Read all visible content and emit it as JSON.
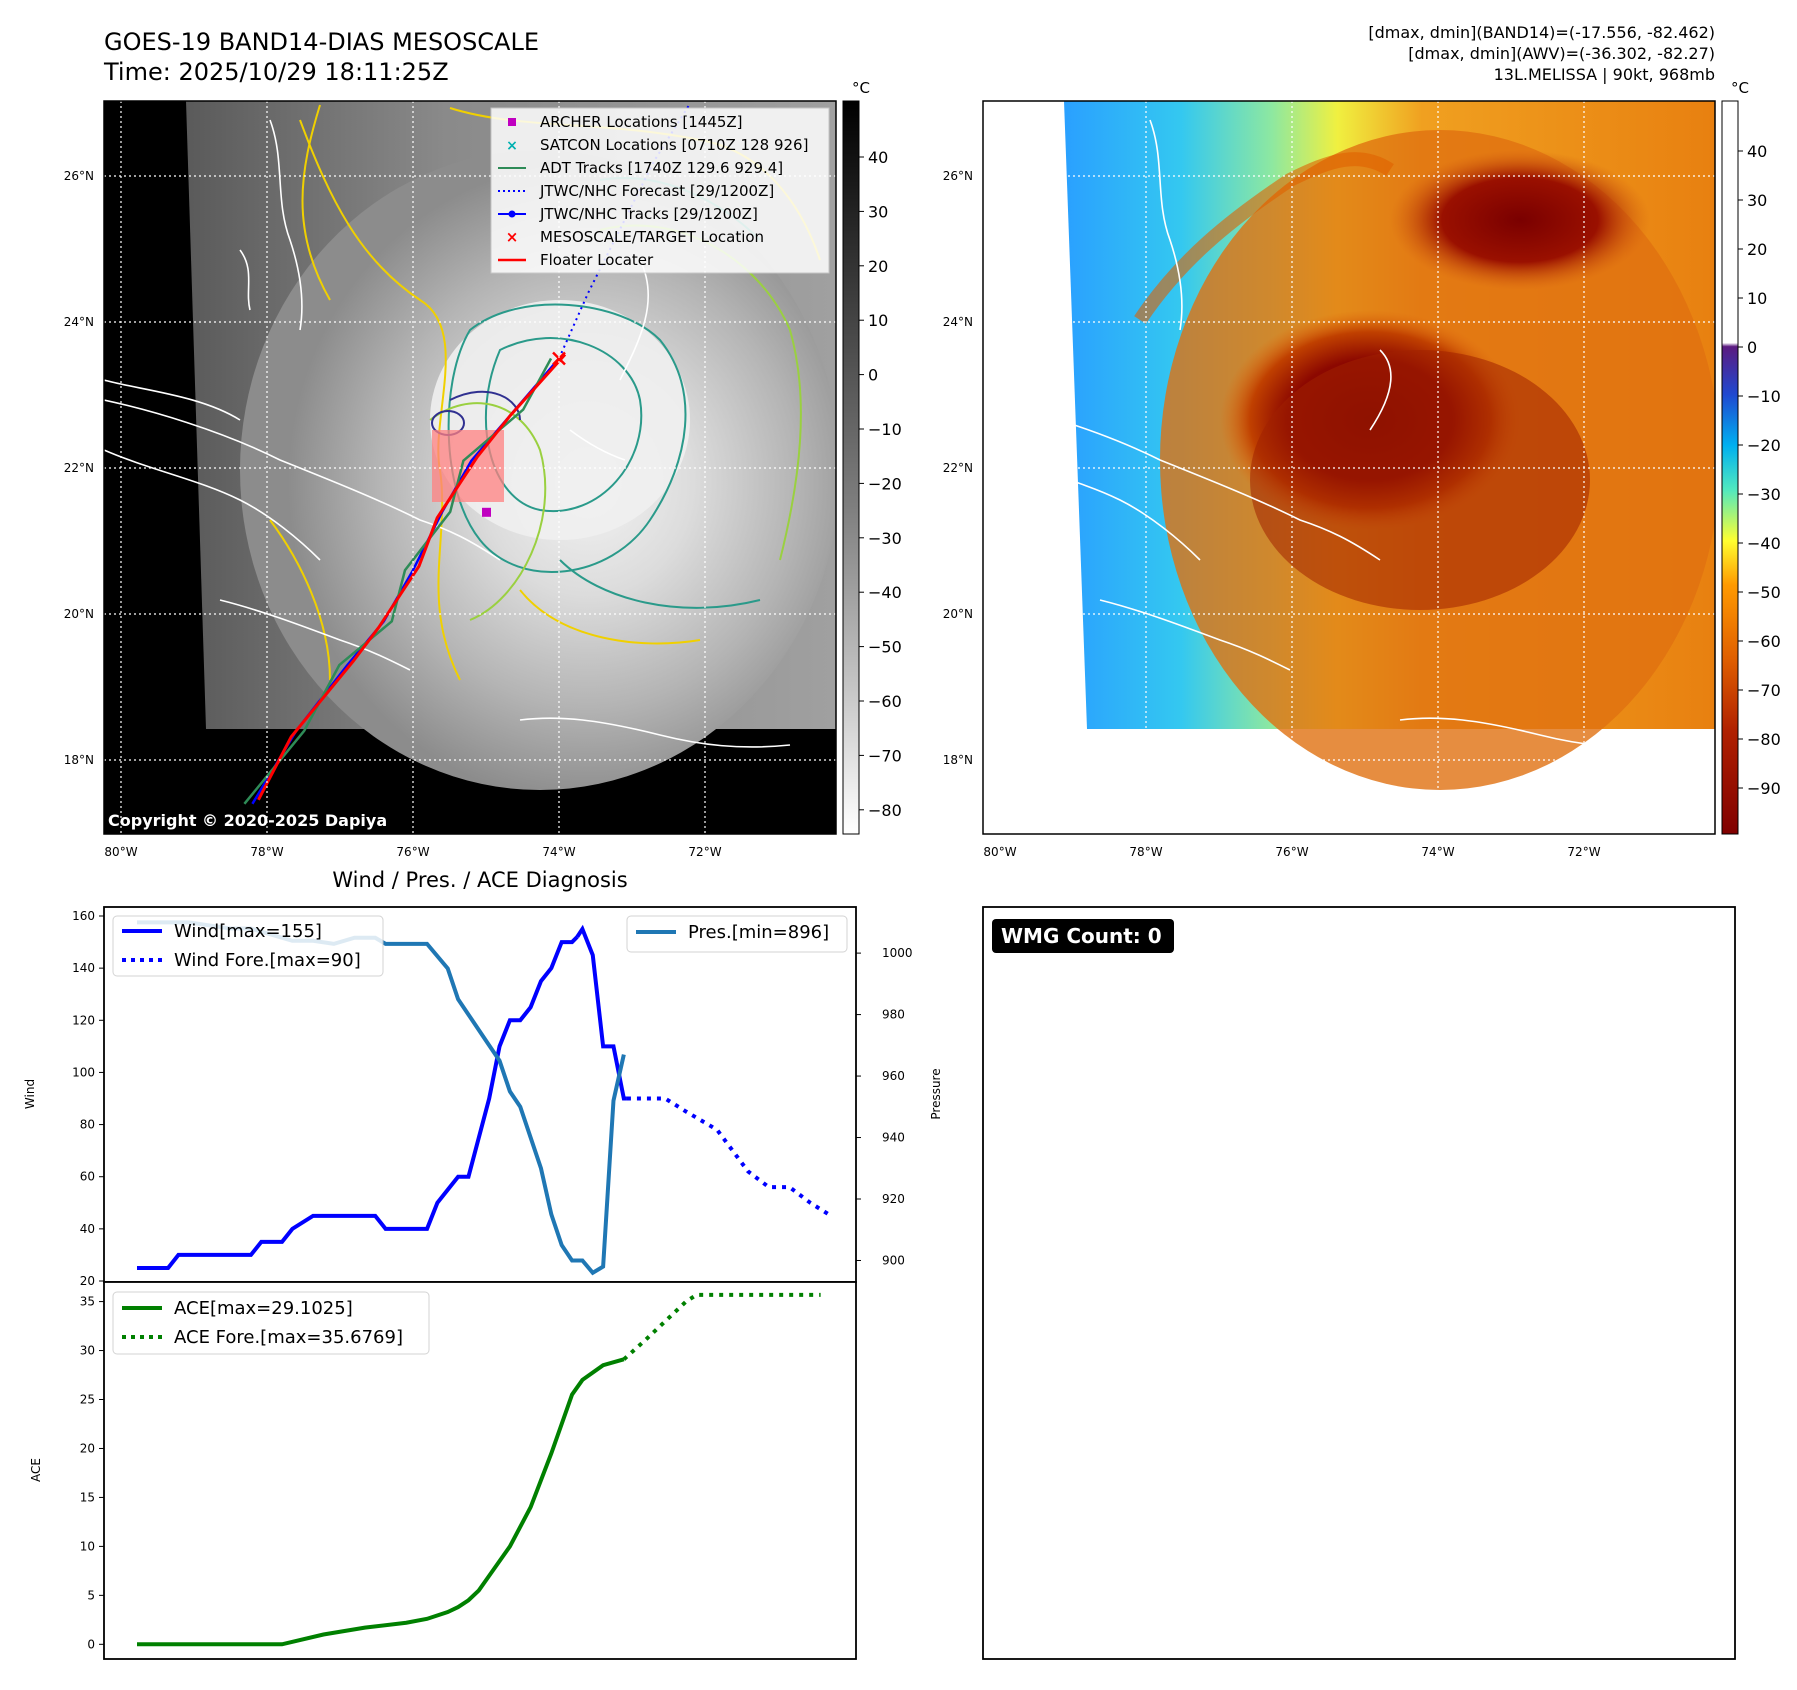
{
  "header": {
    "title": "GOES-19 BAND14-DIAS MESOSCALE",
    "time": "Time: 2025/10/29 18:11:25Z",
    "stat1": "[dmax, dmin](BAND14)=(-17.556, -82.462)",
    "stat2": "[dmax, dmin](AWV)=(-36.302, -82.27)",
    "storm": "13L.MELISSA | 90kt, 968mb",
    "copyright": "Copyright © 2020-2025 Dapiya"
  },
  "colors": {
    "wind": "#0000ff",
    "pres": "#1f77b4",
    "ace": "#008000",
    "archer": "#c000c0",
    "satcon": "#00b0b0",
    "adt": "#2e8b57",
    "target": "#ff0000",
    "floater": "#ff0000"
  },
  "chart_data": [
    {
      "type": "map",
      "panel": "BAND14 grayscale with contours",
      "unit": "°C",
      "colorbar_ticks": [
        "40",
        "30",
        "20",
        "10",
        "0",
        "−10",
        "−20",
        "−30",
        "−40",
        "−50",
        "−60",
        "−70",
        "−80"
      ],
      "lon_ticks": [
        "80°W",
        "78°W",
        "76°W",
        "74°W",
        "72°W"
      ],
      "lat_ticks": [
        "26°N",
        "24°N",
        "22°N",
        "20°N",
        "18°N"
      ],
      "legend": [
        {
          "label": "ARCHER Locations [1445Z]",
          "icon": "magenta-square-icon"
        },
        {
          "label": "SATCON Locations [0710Z 128 926]",
          "icon": "cyan-x-icon"
        },
        {
          "label": "ADT Tracks [1740Z 129.6 929.4]",
          "icon": "green-line-icon"
        },
        {
          "label": "JTWC/NHC Forecast [29/1200Z]",
          "icon": "blue-dotted-line-icon"
        },
        {
          "label": "JTWC/NHC Tracks [29/1200Z]",
          "icon": "blue-line-dot-icon"
        },
        {
          "label": "MESOSCALE/TARGET Location",
          "icon": "red-x-icon"
        },
        {
          "label": "Floater Locater",
          "icon": "red-line-icon"
        }
      ],
      "target_location": {
        "lon": -74.0,
        "lat": 23.5
      },
      "archer_location": {
        "lon": -75.0,
        "lat": 21.4
      },
      "track": [
        [
          -78.2,
          17.4
        ],
        [
          -77.6,
          18.4
        ],
        [
          -76.9,
          19.3
        ],
        [
          -76.4,
          19.9
        ],
        [
          -76.0,
          20.6
        ],
        [
          -75.6,
          21.4
        ],
        [
          -75.2,
          22.1
        ],
        [
          -74.6,
          22.8
        ],
        [
          -74.0,
          23.5
        ]
      ],
      "forecast": [
        [
          -74.0,
          23.5
        ],
        [
          -73.6,
          24.4
        ],
        [
          -73.2,
          25.2
        ],
        [
          -72.7,
          26.2
        ],
        [
          -72.2,
          27.0
        ]
      ]
    },
    {
      "type": "map",
      "panel": "AWV enhanced colour",
      "unit": "°C",
      "colorbar_ticks": [
        "40",
        "30",
        "20",
        "10",
        "0",
        "−10",
        "−20",
        "−30",
        "−40",
        "−50",
        "−60",
        "−70",
        "−80",
        "−90"
      ],
      "lon_ticks": [
        "80°W",
        "78°W",
        "76°W",
        "74°W",
        "72°W"
      ],
      "lat_ticks": [
        "26°N",
        "24°N",
        "22°N",
        "20°N",
        "18°N"
      ]
    },
    {
      "type": "line",
      "title": "Wind / Pres. / ACE Diagnosis",
      "ylabel": "Wind",
      "ylabel_right": "Pressure",
      "ylim": [
        20,
        160
      ],
      "ylim_right": [
        893,
        1015
      ],
      "yticks": [
        "160",
        "140",
        "120",
        "100",
        "80",
        "60",
        "40",
        "20"
      ],
      "yticks_right": [
        "1000",
        "980",
        "960",
        "940",
        "920",
        "900"
      ],
      "xlim": [
        0,
        67
      ],
      "series": [
        {
          "name": "Wind[max=155]",
          "axis": "left",
          "style": "solid",
          "x": [
            0,
            3,
            4,
            11,
            12,
            14,
            15,
            17,
            19,
            20,
            23,
            24,
            25,
            26,
            27,
            28,
            29,
            30,
            31,
            32,
            33,
            34,
            35,
            36,
            37,
            38,
            39,
            40,
            41,
            42,
            42.5
          ],
          "y": [
            25,
            25,
            30,
            30,
            35,
            35,
            40,
            45,
            45,
            45,
            45,
            40,
            40,
            40,
            40,
            40,
            50,
            55,
            60,
            60,
            75,
            90,
            110,
            120,
            120,
            125,
            135,
            140,
            150,
            150,
            152
          ]
        },
        {
          "name": "",
          "axis": "left",
          "style": "solid",
          "x": [
            42.5,
            43,
            44,
            45,
            45.5,
            46,
            47,
            47.3
          ],
          "y": [
            152,
            155,
            145,
            110,
            110,
            110,
            90,
            90
          ]
        },
        {
          "name": "Wind Fore.[max=90]",
          "axis": "left",
          "style": "dotted",
          "x": [
            47.3,
            49,
            51,
            53,
            56,
            59,
            61,
            63,
            65,
            67
          ],
          "y": [
            90,
            90,
            90,
            85,
            78,
            62,
            56,
            56,
            50,
            45
          ]
        },
        {
          "name": "Pres.[min=896]",
          "axis": "right",
          "style": "solid",
          "x": [
            0,
            3,
            5,
            7,
            9,
            11,
            13,
            15,
            17,
            19,
            21,
            23,
            24,
            26,
            28,
            30,
            31,
            32,
            33,
            34,
            35,
            36,
            37,
            38,
            39,
            40,
            41,
            42,
            43,
            44,
            45,
            46,
            47
          ],
          "y": [
            1010,
            1010,
            1010,
            1009,
            1008,
            1008,
            1006,
            1004,
            1004,
            1003,
            1005,
            1005,
            1003,
            1003,
            1003,
            995,
            985,
            980,
            975,
            970,
            965,
            955,
            950,
            940,
            930,
            915,
            905,
            900,
            900,
            896,
            898,
            952,
            967
          ]
        }
      ]
    },
    {
      "type": "line",
      "ylabel": "ACE",
      "ylim": [
        -1.5,
        37
      ],
      "yticks": [
        "35",
        "30",
        "25",
        "20",
        "15",
        "10",
        "5",
        "0"
      ],
      "xlim": [
        0,
        67
      ],
      "series": [
        {
          "name": "ACE[max=29.1025]",
          "style": "solid",
          "x": [
            0,
            14,
            18,
            22,
            26,
            28,
            30,
            31,
            32,
            33,
            34,
            36,
            38,
            40,
            42,
            43,
            45,
            47
          ],
          "y": [
            0,
            0,
            1,
            1.7,
            2.2,
            2.6,
            3.3,
            3.8,
            4.5,
            5.5,
            7,
            10,
            14,
            19.5,
            25.5,
            27,
            28.5,
            29.1
          ]
        },
        {
          "name": "ACE Fore.[max=35.6769]",
          "style": "dotted",
          "x": [
            47,
            49,
            51,
            53,
            54,
            57,
            60,
            63,
            66
          ],
          "y": [
            29.1,
            31,
            33,
            35,
            35.68,
            35.68,
            35.68,
            35.68,
            35.68
          ]
        }
      ]
    },
    {
      "type": "heatmap",
      "annotation": "WMG Count: 0"
    }
  ]
}
